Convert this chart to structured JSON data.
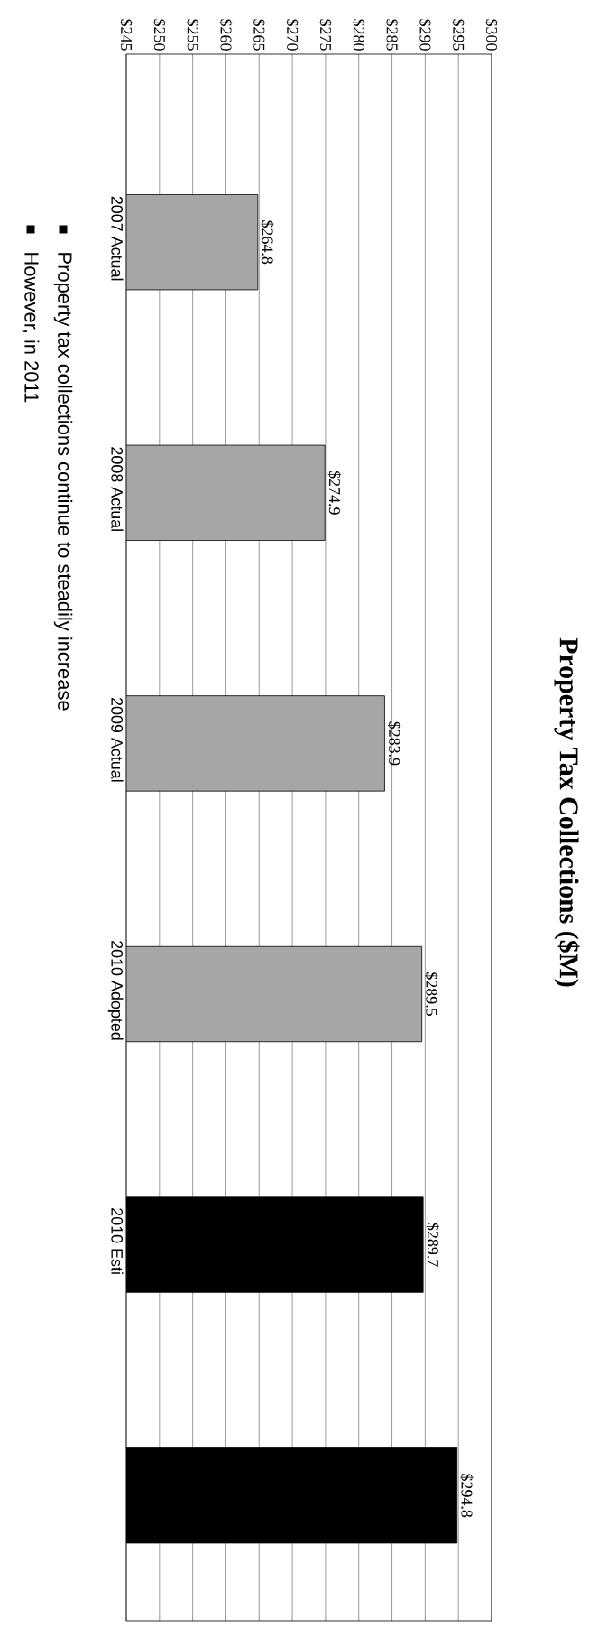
{
  "chart_data": {
    "type": "bar",
    "orientation": "horizontal",
    "title": "Property Tax Collections ($M)",
    "categories": [
      "2007 Actual",
      "2008 Actual",
      "2009 Actual",
      "2010 Adopted",
      "2010 Esti",
      null
    ],
    "values": [
      264.8,
      274.9,
      283.9,
      289.5,
      289.7,
      294.8
    ],
    "value_labels": [
      "$264.8",
      "$274.9",
      "$283.9",
      "$289.5",
      "$289.7",
      "$294.8"
    ],
    "colors": [
      "#a6a6a6",
      "#a6a6a6",
      "#a6a6a6",
      "#a6a6a6",
      "#000000",
      "#000000"
    ],
    "xlim": [
      245,
      300
    ],
    "xticks": [
      {
        "value": 245,
        "label": "$245"
      },
      {
        "value": 250,
        "label": "$250"
      },
      {
        "value": 255,
        "label": "$255"
      },
      {
        "value": 260,
        "label": "$260"
      },
      {
        "value": 265,
        "label": "$265"
      },
      {
        "value": 270,
        "label": "$270"
      },
      {
        "value": 275,
        "label": "$275"
      },
      {
        "value": 280,
        "label": "$280"
      },
      {
        "value": 285,
        "label": "$285"
      },
      {
        "value": 290,
        "label": "$290"
      },
      {
        "value": 295,
        "label": "$295"
      },
      {
        "value": 300,
        "label": "$300"
      }
    ],
    "grid": "x",
    "annotations": [
      "Property tax collections continue to steadily increase",
      "However, in 2011"
    ]
  }
}
